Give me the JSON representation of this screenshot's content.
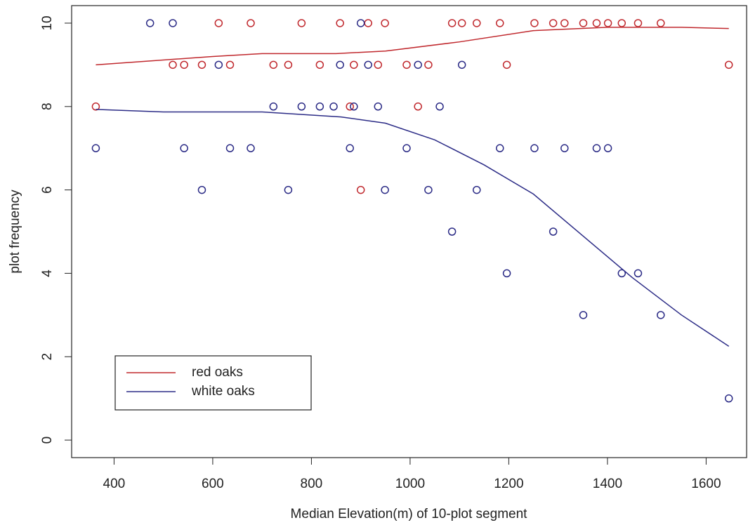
{
  "chart_data": {
    "type": "scatter",
    "x_label": "Median Elevation(m) of 10-plot segment",
    "y_label": "plot frequency",
    "xlim": [
      314,
      1682
    ],
    "ylim": [
      -0.42,
      10.42
    ],
    "xticks": [
      400,
      600,
      800,
      1000,
      1200,
      1400,
      1600
    ],
    "yticks": [
      0,
      2,
      4,
      6,
      8,
      10
    ],
    "legend": "bottom-left",
    "series": [
      {
        "name": "red oaks",
        "color": "#c0282d",
        "x": [
          363,
          519,
          542,
          578,
          612,
          635,
          677,
          723,
          753,
          780,
          817,
          858,
          878,
          886,
          900,
          915,
          935,
          949,
          993,
          1016,
          1037,
          1085,
          1105,
          1135,
          1182,
          1196,
          1252,
          1290,
          1313,
          1351,
          1378,
          1401,
          1429,
          1462,
          1508,
          1646
        ],
        "values": [
          8,
          9,
          9,
          9,
          10,
          9,
          10,
          9,
          9,
          10,
          9,
          10,
          8,
          9,
          6,
          10,
          9,
          10,
          9,
          8,
          9,
          10,
          10,
          10,
          10,
          9,
          10,
          10,
          10,
          10,
          10,
          10,
          10,
          10,
          10,
          9
        ],
        "smooth_x": [
          363,
          600,
          700,
          850,
          950,
          1100,
          1250,
          1400,
          1550,
          1646
        ],
        "smooth_values": [
          9.0,
          9.2,
          9.27,
          9.27,
          9.33,
          9.55,
          9.82,
          9.9,
          9.9,
          9.87
        ]
      },
      {
        "name": "white oaks",
        "color": "#2b2b86",
        "x": [
          363,
          473,
          519,
          542,
          578,
          612,
          635,
          677,
          723,
          753,
          780,
          817,
          845,
          858,
          878,
          886,
          900,
          915,
          935,
          949,
          993,
          1016,
          1037,
          1060,
          1085,
          1105,
          1135,
          1182,
          1196,
          1252,
          1290,
          1313,
          1351,
          1378,
          1401,
          1429,
          1462,
          1508,
          1646
        ],
        "values": [
          7,
          10,
          10,
          7,
          6,
          9,
          7,
          7,
          8,
          6,
          8,
          8,
          8,
          9,
          7,
          8,
          10,
          9,
          8,
          6,
          7,
          9,
          6,
          8,
          5,
          9,
          6,
          7,
          4,
          7,
          5,
          7,
          3,
          7,
          7,
          4,
          4,
          3,
          1
        ],
        "smooth_x": [
          363,
          500,
          700,
          860,
          950,
          1050,
          1150,
          1250,
          1350,
          1450,
          1550,
          1646
        ],
        "smooth_values": [
          7.93,
          7.87,
          7.87,
          7.75,
          7.6,
          7.2,
          6.6,
          5.9,
          4.9,
          3.9,
          3.0,
          2.25
        ]
      }
    ]
  }
}
